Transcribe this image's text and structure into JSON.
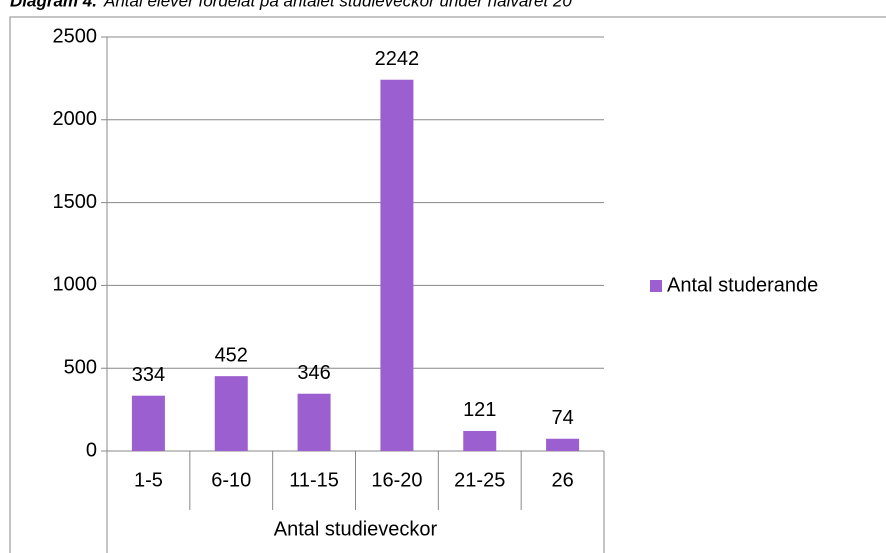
{
  "chart_data": {
    "type": "bar",
    "title": "Diagram 4.",
    "subtitle": "Antal elever fördelat på antalet studieveckor under halvåret 20",
    "categories": [
      "1-5",
      "6-10",
      "11-15",
      "16-20",
      "21-25",
      "26"
    ],
    "series": [
      {
        "name": "Antal studerande",
        "color": "#9c5fd0",
        "values": [
          334,
          452,
          346,
          2242,
          121,
          74
        ]
      }
    ],
    "xlabel": "Antal studieveckor",
    "ylim": [
      0,
      2500
    ],
    "yticks": [
      0,
      500,
      1000,
      1500,
      2000,
      2500
    ],
    "grid": true,
    "legend": "right"
  }
}
